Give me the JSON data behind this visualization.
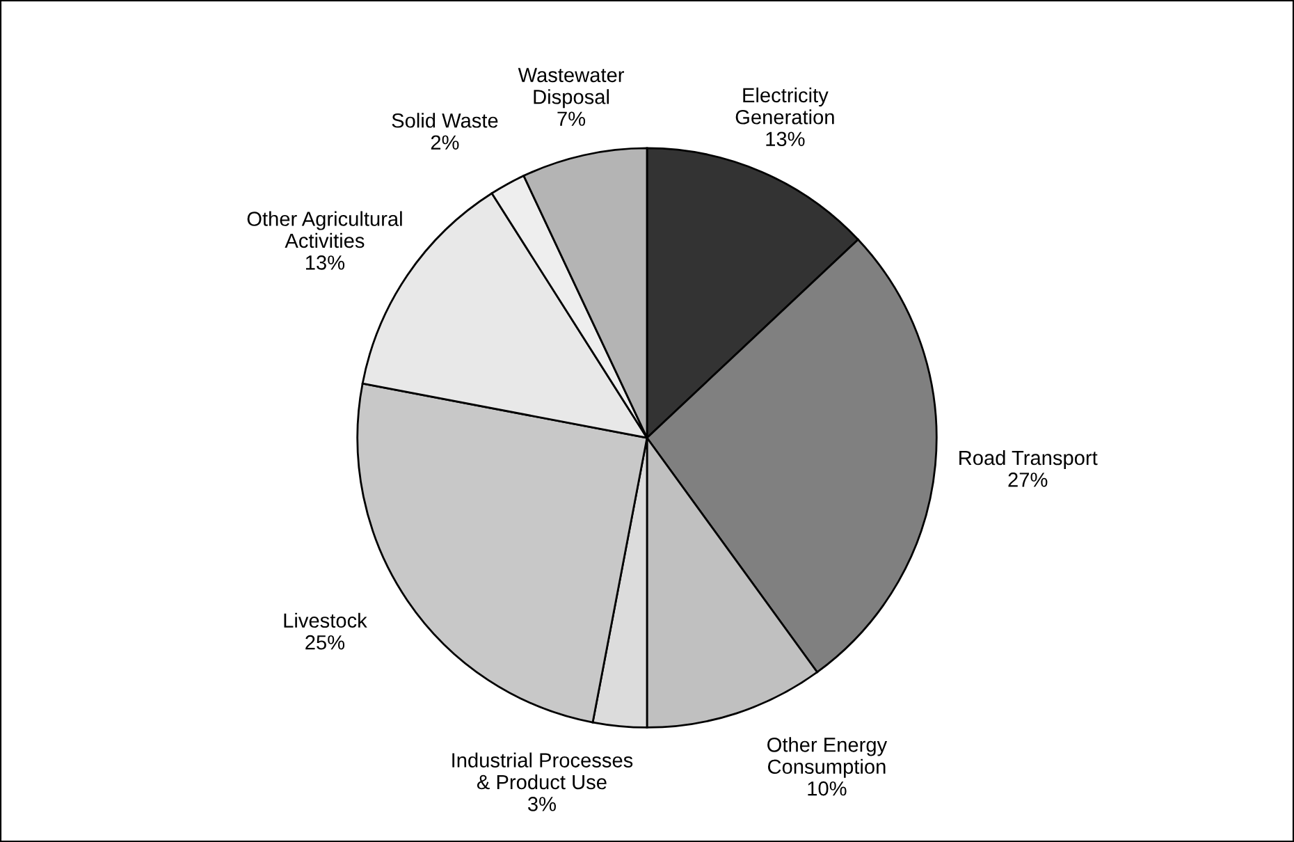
{
  "chart_data": {
    "type": "pie",
    "categories": [
      "Electricity\nGeneration",
      "Road Transport",
      "Other Energy\nConsumption",
      "Industrial Processes\n& Product Use",
      "Livestock",
      "Other Agricultural\nActivities",
      "Solid Waste",
      "Wastewater\nDisposal"
    ],
    "values": [
      13,
      27,
      10,
      3,
      25,
      13,
      2,
      7
    ],
    "value_labels": [
      "13%",
      "27%",
      "10%",
      "3%",
      "25%",
      "13%",
      "2%",
      "7%"
    ],
    "colors": [
      "#333333",
      "#808080",
      "#c0c0c0",
      "#dcdcdc",
      "#c8c8c8",
      "#e8e8e8",
      "#eeeeee",
      "#b4b4b4"
    ],
    "legend": false
  }
}
